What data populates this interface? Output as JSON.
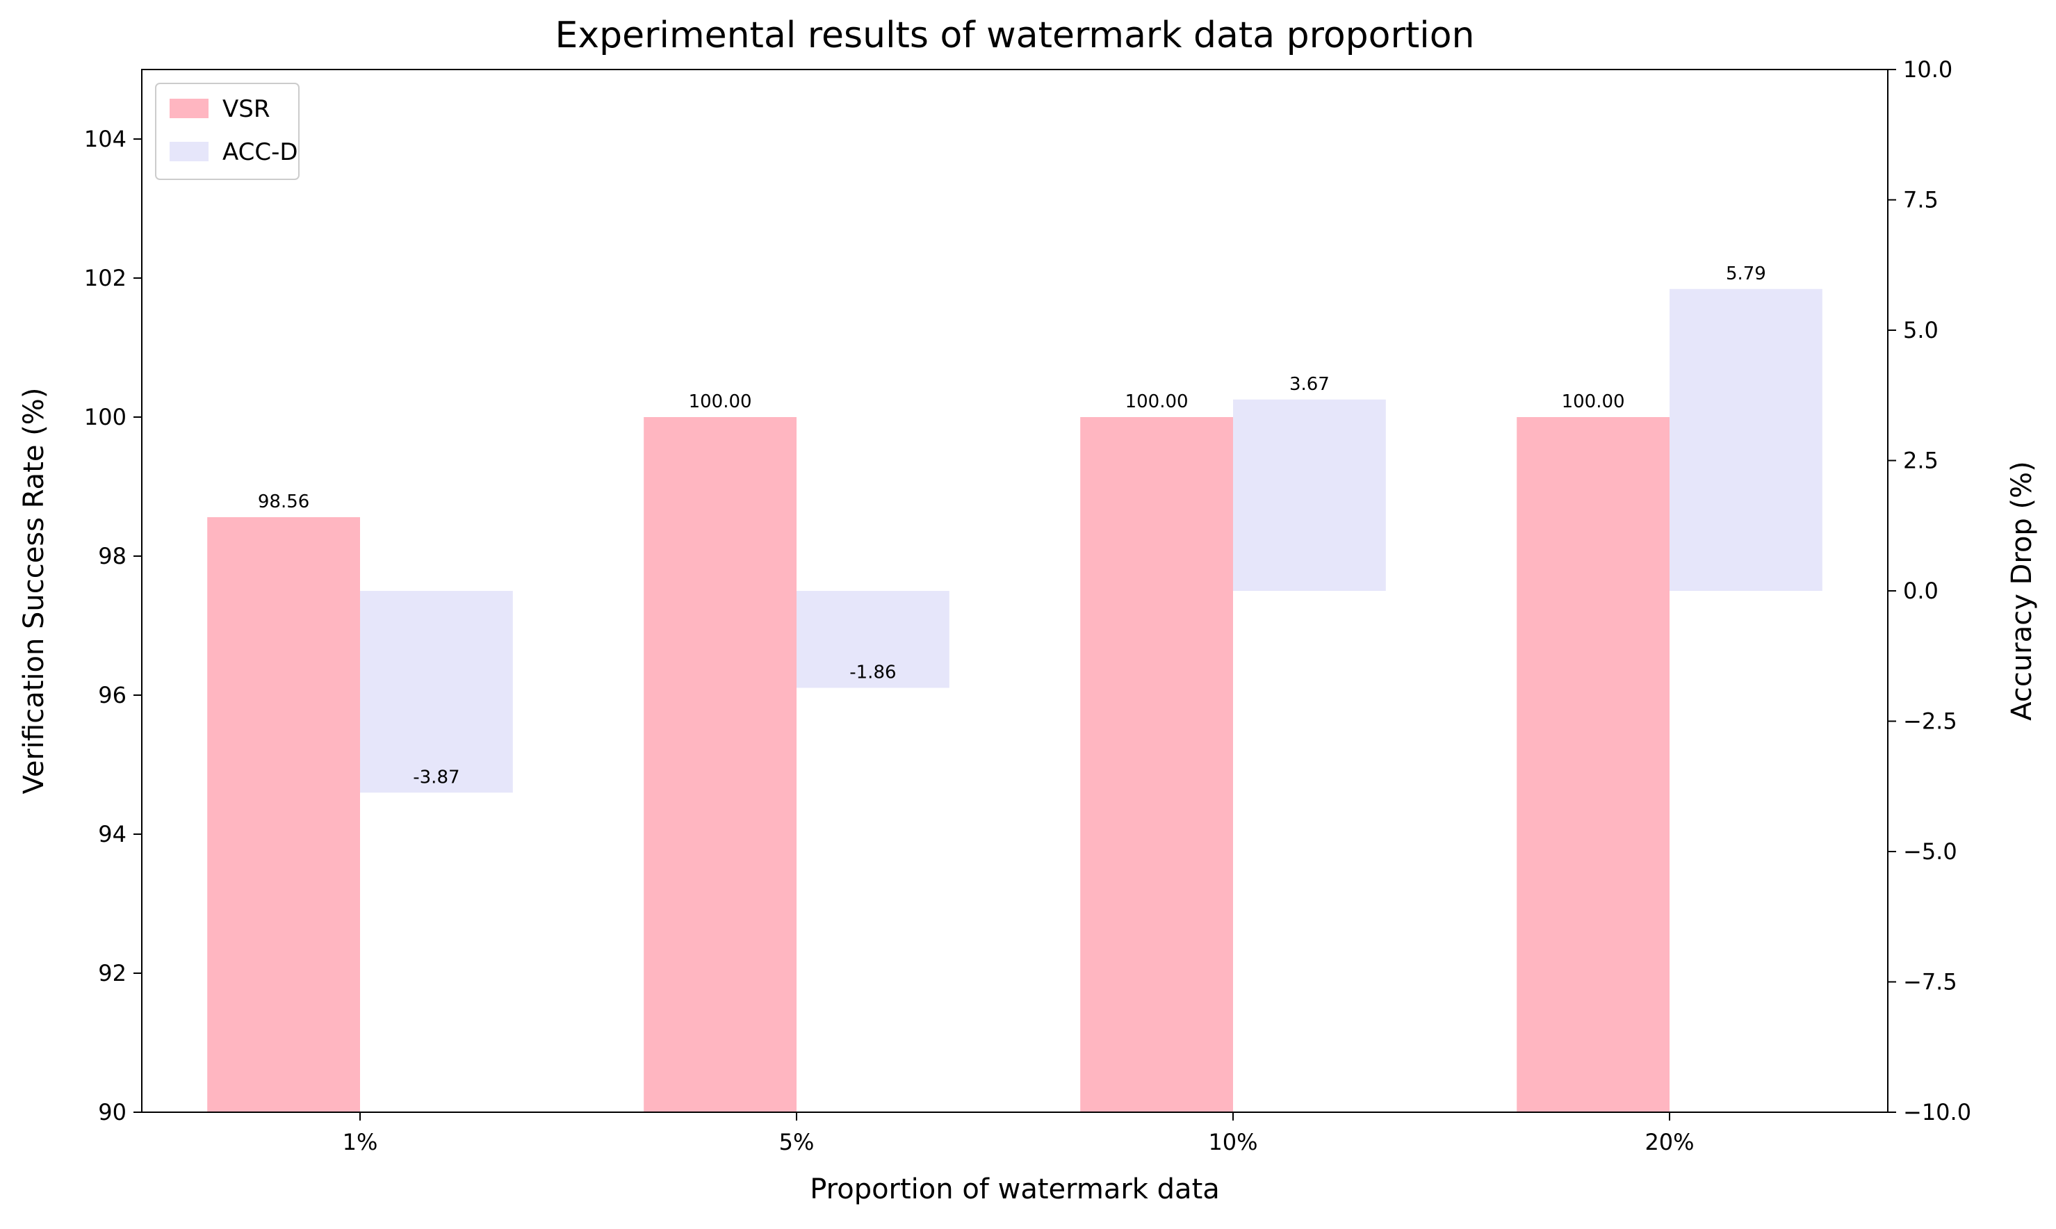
{
  "chart_data": {
    "type": "bar",
    "title": "Experimental results of watermark data proportion",
    "xlabel": "Proportion of watermark data",
    "ylabel": "Verification Success Rate (%)",
    "y2label": "Accuracy Drop (%)",
    "categories": [
      "1%",
      "5%",
      "10%",
      "20%"
    ],
    "ylim": [
      90,
      105
    ],
    "y2lim": [
      -10,
      10
    ],
    "yticks": [
      90,
      92,
      94,
      96,
      98,
      100,
      102,
      104
    ],
    "y2ticks": [
      -10.0,
      -7.5,
      -5.0,
      -2.5,
      0.0,
      2.5,
      5.0,
      7.5,
      10.0
    ],
    "ytick_labels": [
      "90",
      "92",
      "94",
      "96",
      "98",
      "100",
      "102",
      "104"
    ],
    "y2tick_labels": [
      "−10.0",
      "−7.5",
      "−5.0",
      "−2.5",
      "0.0",
      "2.5",
      "5.0",
      "7.5",
      "10.0"
    ],
    "grid": false,
    "legend_position": "top-left",
    "series": [
      {
        "name": "VSR",
        "axis": "left",
        "color": "#FFB6C1",
        "values": [
          98.56,
          100.0,
          100.0,
          100.0
        ],
        "labels": [
          "98.56",
          "100.00",
          "100.00",
          "100.00"
        ]
      },
      {
        "name": "ACC-D",
        "axis": "right",
        "color": "#E6E6FA",
        "values": [
          -3.87,
          -1.86,
          3.67,
          5.79
        ],
        "labels": [
          "-3.87",
          "-1.86",
          "3.67",
          "5.79"
        ]
      }
    ]
  }
}
